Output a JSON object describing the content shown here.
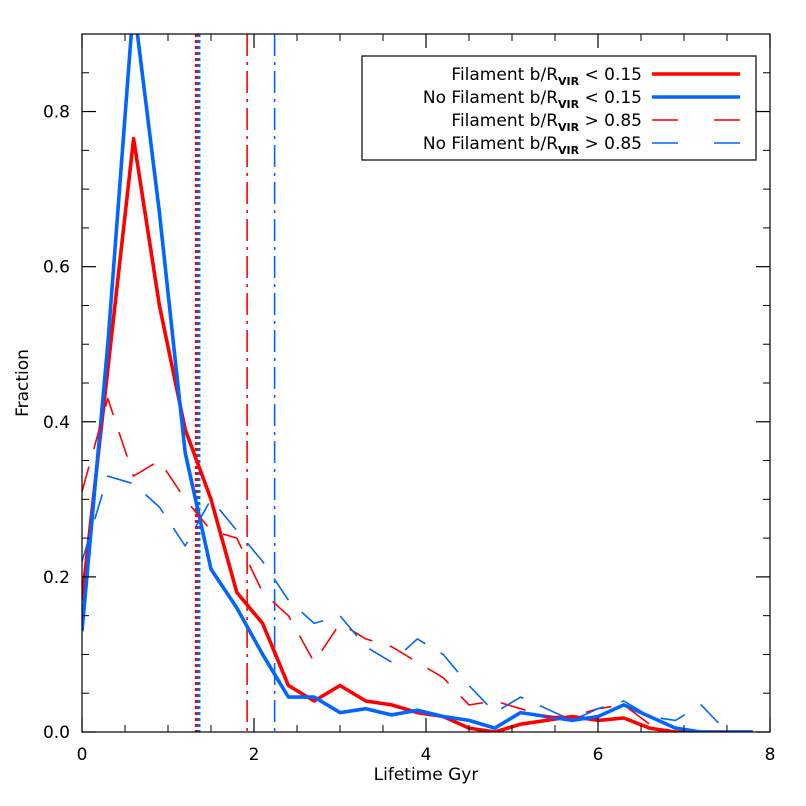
{
  "chart_data": {
    "type": "line",
    "xlabel": "Lifetime Gyr",
    "ylabel": "Fraction",
    "xlim": [
      0,
      8
    ],
    "ylim": [
      0,
      0.9
    ],
    "x_ticks": [
      "0",
      "2",
      "4",
      "6",
      "8"
    ],
    "y_ticks": [
      "0.0",
      "0.2",
      "0.4",
      "0.6",
      "0.8"
    ],
    "legend_position": "top-right",
    "series": [
      {
        "name": "Filament b/R_VIR < 0.15",
        "legend_name": "Filament b/R",
        "legend_sub": "VIR",
        "legend_tail": " < 0.15",
        "color": "#ff0000",
        "style": "solid",
        "x": [
          0.0,
          0.6,
          0.9,
          1.2,
          1.5,
          1.8,
          2.1,
          2.4,
          2.7,
          3.0,
          3.3,
          3.6,
          3.9,
          4.2,
          4.5,
          4.8,
          5.1,
          5.4,
          5.7,
          6.0,
          6.3,
          6.6,
          6.9,
          7.2,
          7.5,
          7.8
        ],
        "y": [
          0.17,
          0.765,
          0.55,
          0.39,
          0.3,
          0.18,
          0.14,
          0.06,
          0.04,
          0.06,
          0.04,
          0.035,
          0.025,
          0.02,
          0.005,
          0.0,
          0.01,
          0.015,
          0.02,
          0.015,
          0.018,
          0.005,
          0.0,
          0.0,
          0.0,
          0.0
        ]
      },
      {
        "name": "No Filament b/R_VIR < 0.15",
        "legend_name": "No Filament b/R",
        "legend_sub": "VIR",
        "legend_tail": " < 0.15",
        "color": "#0066ff",
        "style": "solid",
        "x": [
          0.0,
          0.3,
          0.6,
          0.9,
          1.2,
          1.5,
          1.8,
          2.1,
          2.4,
          2.7,
          3.0,
          3.3,
          3.6,
          3.9,
          4.2,
          4.5,
          4.8,
          5.1,
          5.4,
          5.7,
          6.0,
          6.3,
          6.6,
          6.9,
          7.2,
          7.5,
          7.8
        ],
        "y": [
          0.13,
          0.5,
          0.94,
          0.67,
          0.36,
          0.21,
          0.16,
          0.1,
          0.045,
          0.045,
          0.025,
          0.03,
          0.022,
          0.028,
          0.02,
          0.015,
          0.005,
          0.025,
          0.02,
          0.015,
          0.02,
          0.035,
          0.02,
          0.005,
          0.0,
          0.0,
          0.0
        ]
      },
      {
        "name": "Filament b/R_VIR > 0.85",
        "legend_name": "Filament b/R",
        "legend_sub": "VIR",
        "legend_tail": " > 0.85",
        "color": "#ff0000",
        "style": "dashed",
        "x": [
          0.0,
          0.3,
          0.6,
          0.9,
          1.2,
          1.5,
          1.8,
          2.1,
          2.4,
          2.7,
          3.0,
          3.3,
          3.6,
          3.9,
          4.2,
          4.5,
          4.8,
          5.1,
          5.4,
          5.7,
          6.0,
          6.3,
          6.6,
          6.9,
          7.2,
          7.5
        ],
        "y": [
          0.31,
          0.43,
          0.33,
          0.35,
          0.3,
          0.26,
          0.25,
          0.18,
          0.15,
          0.09,
          0.14,
          0.12,
          0.11,
          0.09,
          0.07,
          0.035,
          0.04,
          0.03,
          0.02,
          0.02,
          0.03,
          0.035,
          0.01,
          0.0,
          0.0,
          0.0
        ]
      },
      {
        "name": "No Filament b/R_VIR > 0.85",
        "legend_name": "No Filament b/R",
        "legend_sub": "VIR",
        "legend_tail": " > 0.85",
        "color": "#0066ff",
        "style": "dashed",
        "x": [
          0.0,
          0.3,
          0.6,
          0.9,
          1.2,
          1.5,
          1.8,
          2.1,
          2.4,
          2.7,
          3.0,
          3.3,
          3.6,
          3.9,
          4.2,
          4.5,
          4.8,
          5.1,
          5.4,
          5.7,
          6.0,
          6.3,
          6.6,
          6.9,
          7.2,
          7.5
        ],
        "y": [
          0.22,
          0.33,
          0.32,
          0.29,
          0.24,
          0.3,
          0.26,
          0.22,
          0.17,
          0.14,
          0.15,
          0.11,
          0.09,
          0.12,
          0.1,
          0.06,
          0.025,
          0.045,
          0.03,
          0.015,
          0.03,
          0.04,
          0.02,
          0.015,
          0.035,
          0.0
        ]
      }
    ],
    "vertical_lines": [
      {
        "x": 1.33,
        "color": "#ff0000",
        "style": "dotted"
      },
      {
        "x": 1.36,
        "color": "#0066ff",
        "style": "dotted"
      },
      {
        "x": 1.92,
        "color": "#ff0000",
        "style": "dashdot"
      },
      {
        "x": 2.24,
        "color": "#0066ff",
        "style": "dashdot"
      }
    ]
  }
}
